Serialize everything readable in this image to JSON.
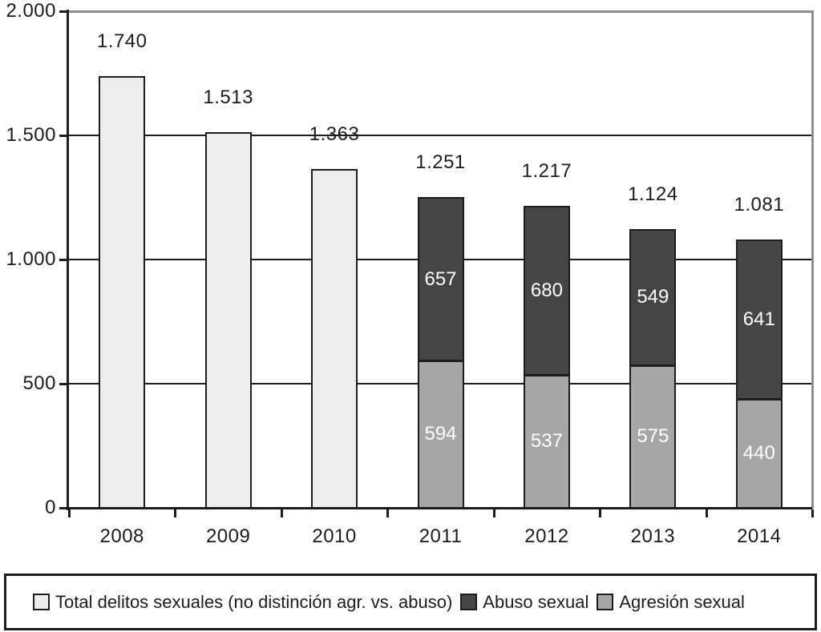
{
  "chart_data": {
    "type": "bar",
    "stacked": true,
    "title": "",
    "xlabel": "",
    "ylabel": "",
    "categories": [
      "2008",
      "2009",
      "2010",
      "2011",
      "2012",
      "2013",
      "2014"
    ],
    "series": [
      {
        "id": "total",
        "name": "Total delitos sexuales (no distinción agr. vs. abuso)",
        "color": "#ededed",
        "label_color": "#1c1c1c",
        "values": [
          1740,
          1513,
          1363,
          null,
          null,
          null,
          null
        ]
      },
      {
        "id": "agresion",
        "name": "Agresión sexual",
        "color": "#a6a6a6",
        "label_color": "#ffffff",
        "values": [
          null,
          null,
          null,
          594,
          537,
          575,
          440
        ]
      },
      {
        "id": "abuso",
        "name": "Abuso sexual",
        "color": "#454545",
        "label_color": "#ffffff",
        "values": [
          null,
          null,
          null,
          657,
          680,
          549,
          641
        ]
      }
    ],
    "totals": {
      "values": [
        1740,
        1513,
        1363,
        1251,
        1217,
        1124,
        1081
      ],
      "labels": [
        "1.740",
        "1.513",
        "1.363",
        "1.251",
        "1.217",
        "1.124",
        "1.081"
      ]
    },
    "ylim": [
      0,
      2000
    ],
    "yticks": {
      "values": [
        0,
        500,
        1000,
        1500,
        2000
      ],
      "labels": [
        "0",
        "500",
        "1.000",
        "1.500",
        "2.000"
      ]
    },
    "grid": true,
    "legend_position": "bottom",
    "legend_order": [
      "total",
      "abuso",
      "agresion"
    ]
  },
  "colors": {
    "axis": "#1c1c1c",
    "grid": "#1c1c1c",
    "frame": "#8e8e8e",
    "text": "#1c1c1c",
    "background": "#ffffff",
    "bar_border": "#1c1c1c"
  }
}
